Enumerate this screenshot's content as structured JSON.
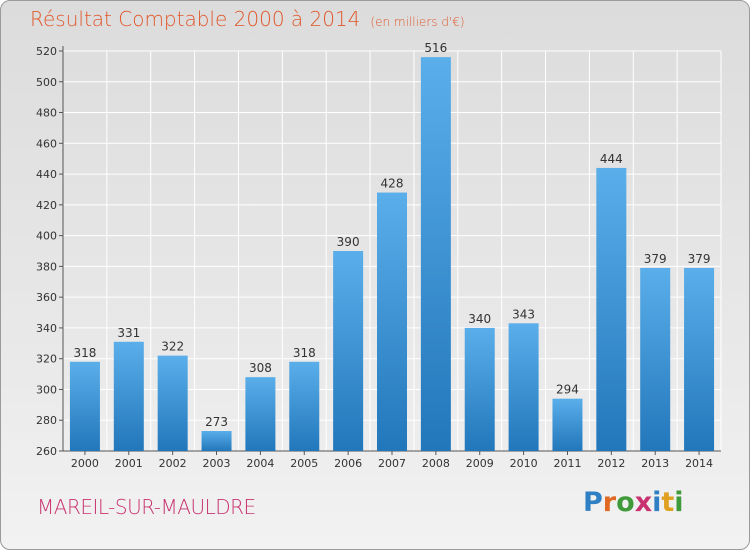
{
  "title": "Résultat Comptable 2000 à 2014",
  "subtitle": "(en milliers d'€)",
  "place": "MAREIL-SUR-MAULDRE",
  "logo": {
    "p": "P",
    "r": "r",
    "o": "o",
    "x": "x",
    "i1": "i",
    "t": "t",
    "i2": "i"
  },
  "colors": {
    "bar_top": "#5aaeea",
    "bar_bottom": "#2277bb",
    "title": "#e0572a",
    "place": "#c8326f",
    "grid": "#ffffff"
  },
  "chart_data": {
    "type": "bar",
    "title": "Résultat Comptable 2000 à 2014",
    "subtitle": "(en milliers d'€)",
    "xlabel": "",
    "ylabel": "",
    "categories": [
      "2000",
      "2001",
      "2002",
      "2003",
      "2004",
      "2005",
      "2006",
      "2007",
      "2008",
      "2009",
      "2010",
      "2011",
      "2012",
      "2013",
      "2014"
    ],
    "values": [
      318,
      331,
      322,
      273,
      308,
      318,
      390,
      428,
      516,
      340,
      343,
      294,
      444,
      379,
      379
    ],
    "ylim": [
      260,
      520
    ],
    "yticks": [
      260,
      280,
      300,
      320,
      340,
      360,
      380,
      400,
      420,
      440,
      460,
      480,
      500,
      520
    ],
    "grid": true
  }
}
